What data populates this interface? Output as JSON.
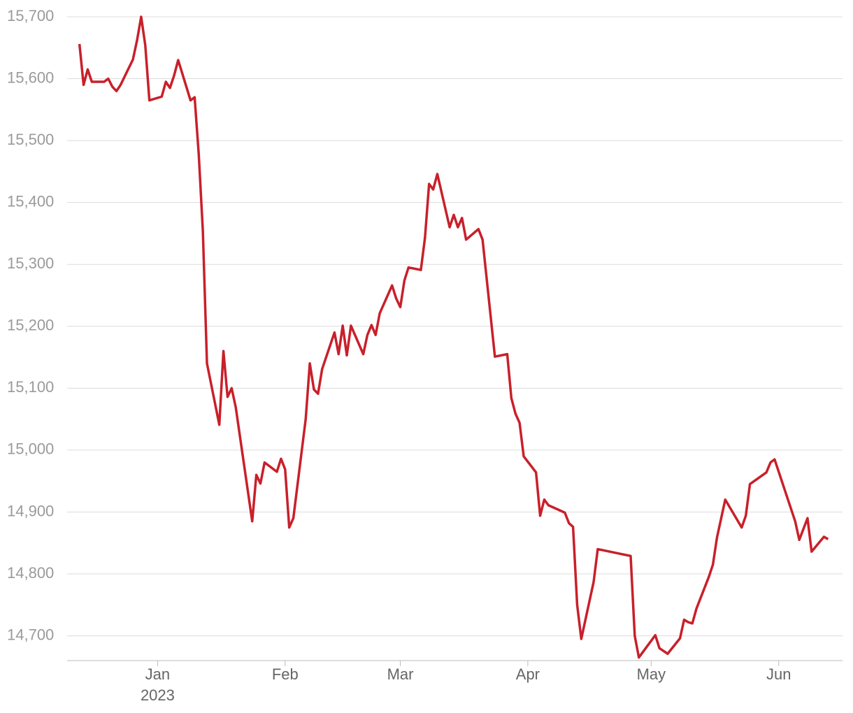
{
  "chart_data": {
    "type": "line",
    "x": [
      -19,
      -18,
      -17,
      -16,
      -13,
      -12,
      -11,
      -10,
      -9,
      -6,
      -5,
      -4,
      -3,
      -2,
      1,
      2,
      3,
      4,
      5,
      8,
      9,
      10,
      11,
      12,
      15,
      16,
      17,
      18,
      19,
      23,
      24,
      25,
      26,
      29,
      30,
      31,
      32,
      33,
      36,
      37,
      38,
      39,
      40,
      43,
      44,
      45,
      46,
      47,
      50,
      51,
      52,
      53,
      54,
      57,
      58,
      59,
      60,
      61,
      64,
      65,
      66,
      67,
      68,
      71,
      72,
      73,
      74,
      75,
      78,
      79,
      82,
      85,
      86,
      87,
      88,
      89,
      92,
      93,
      94,
      95,
      99,
      100,
      101,
      102,
      103,
      106,
      107,
      115,
      116,
      117,
      121,
      122,
      124,
      127,
      128,
      129,
      130,
      131,
      134,
      135,
      136,
      138,
      142,
      143,
      144,
      148,
      149,
      150,
      155,
      156,
      158,
      159,
      162,
      163
    ],
    "series": [
      {
        "color": "#c8202a",
        "values": [
          15656,
          15590,
          15615,
          15595,
          15595,
          15600,
          15587,
          15580,
          15590,
          15631,
          15662,
          15700,
          15654,
          15565,
          15571,
          15595,
          15585,
          15605,
          15630,
          15565,
          15570,
          15478,
          15354,
          15140,
          15041,
          15160,
          15086,
          15100,
          15069,
          14885,
          14960,
          14946,
          14980,
          14965,
          14986,
          14969,
          14875,
          14890,
          15050,
          15140,
          15098,
          15091,
          15131,
          15190,
          15155,
          15201,
          15153,
          15201,
          15155,
          15186,
          15202,
          15186,
          15221,
          15266,
          15245,
          15231,
          15274,
          15295,
          15291,
          15343,
          15430,
          15421,
          15446,
          15360,
          15380,
          15360,
          15375,
          15340,
          15357,
          15340,
          15151,
          15155,
          15084,
          15059,
          15044,
          14990,
          14964,
          14894,
          14920,
          14911,
          14899,
          14882,
          14876,
          14750,
          14695,
          14787,
          14840,
          14829,
          14700,
          14665,
          14701,
          14680,
          14671,
          14696,
          14726,
          14722,
          14720,
          14744,
          14795,
          14815,
          14859,
          14920,
          14875,
          14894,
          14945,
          14964,
          14980,
          14985,
          14885,
          14855,
          14890,
          14836,
          14860,
          14856
        ]
      }
    ],
    "xlim": [
      -22,
      166
    ],
    "xticks": [
      {
        "value": 0,
        "label": "Jan"
      },
      {
        "value": 31,
        "label": "Feb"
      },
      {
        "value": 59,
        "label": "Mar"
      },
      {
        "value": 90,
        "label": "Apr"
      },
      {
        "value": 120,
        "label": "May"
      },
      {
        "value": 151,
        "label": "Jun"
      }
    ],
    "year_label": "2023",
    "ylim": [
      14660,
      15700
    ],
    "yticks": [
      {
        "value": 14700,
        "label": "14,700"
      },
      {
        "value": 14800,
        "label": "14,800"
      },
      {
        "value": 14900,
        "label": "14,900"
      },
      {
        "value": 15000,
        "label": "15,000"
      },
      {
        "value": 15100,
        "label": "15,100"
      },
      {
        "value": 15200,
        "label": "15,200"
      },
      {
        "value": 15300,
        "label": "15,300"
      },
      {
        "value": 15400,
        "label": "15,400"
      },
      {
        "value": 15500,
        "label": "15,500"
      },
      {
        "value": 15600,
        "label": "15,600"
      },
      {
        "value": 15700,
        "label": "15,700"
      }
    ],
    "grid": true
  }
}
